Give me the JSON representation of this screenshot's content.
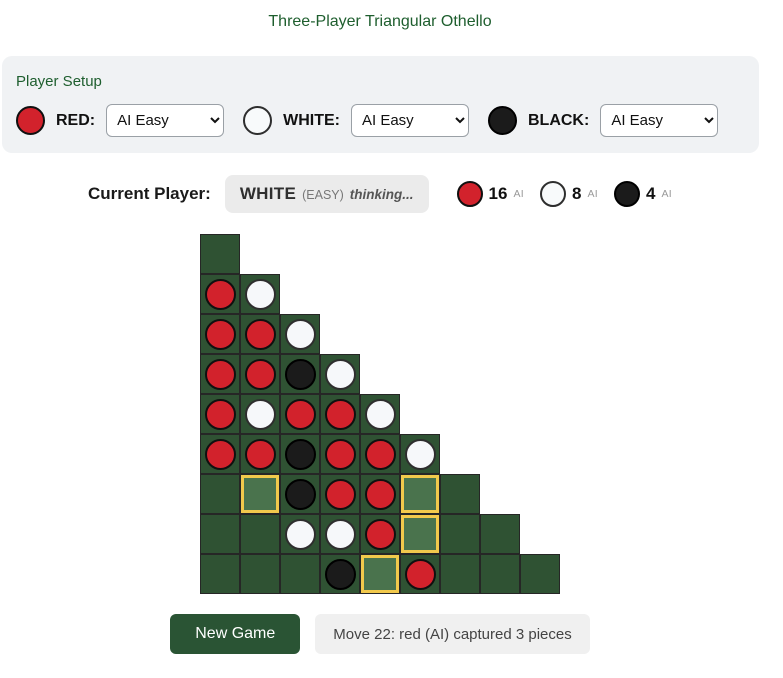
{
  "title": "Three-Player Triangular Othello",
  "colors": {
    "red": "#d2222c",
    "white_disc": "#f8fafb",
    "black_disc": "#1b1b1b",
    "cell": "#2f5233",
    "cell_highlight": "#4a734d",
    "highlight_border": "#f2c94c",
    "heading_green": "#1e5e2e",
    "button_green": "#2a5434"
  },
  "setup": {
    "heading": "Player Setup",
    "players": [
      {
        "id": "red",
        "label": "RED:",
        "ai": "AI Easy"
      },
      {
        "id": "white",
        "label": "WHITE:",
        "ai": "AI Easy"
      },
      {
        "id": "black",
        "label": "BLACK:",
        "ai": "AI Easy"
      }
    ]
  },
  "status_bar": {
    "current_player_label": "Current Player:",
    "turn": {
      "player": "WHITE",
      "difficulty": "(EASY)",
      "state": "thinking..."
    },
    "scores": [
      {
        "player": "red",
        "count": "16",
        "tag": "AI"
      },
      {
        "player": "white",
        "count": "8",
        "tag": "AI"
      },
      {
        "player": "black",
        "count": "4",
        "tag": "AI"
      }
    ]
  },
  "board": {
    "legend": {
      "E": "empty",
      "R": "red piece",
      "W": "white piece",
      "B": "black piece",
      "H": "highlighted legal move"
    },
    "rows": [
      [
        "E"
      ],
      [
        "R",
        "W"
      ],
      [
        "R",
        "R",
        "W"
      ],
      [
        "R",
        "R",
        "B",
        "W"
      ],
      [
        "R",
        "W",
        "R",
        "R",
        "W"
      ],
      [
        "R",
        "R",
        "B",
        "R",
        "R",
        "W"
      ],
      [
        "E",
        "H",
        "B",
        "R",
        "R",
        "H",
        "E"
      ],
      [
        "E",
        "E",
        "W",
        "W",
        "R",
        "H",
        "E",
        "E"
      ],
      [
        "E",
        "E",
        "E",
        "B",
        "H",
        "R",
        "E",
        "E",
        "E"
      ]
    ]
  },
  "controls": {
    "new_game_label": "New Game",
    "status_message": "Move 22: red (AI) captured 3 pieces"
  }
}
